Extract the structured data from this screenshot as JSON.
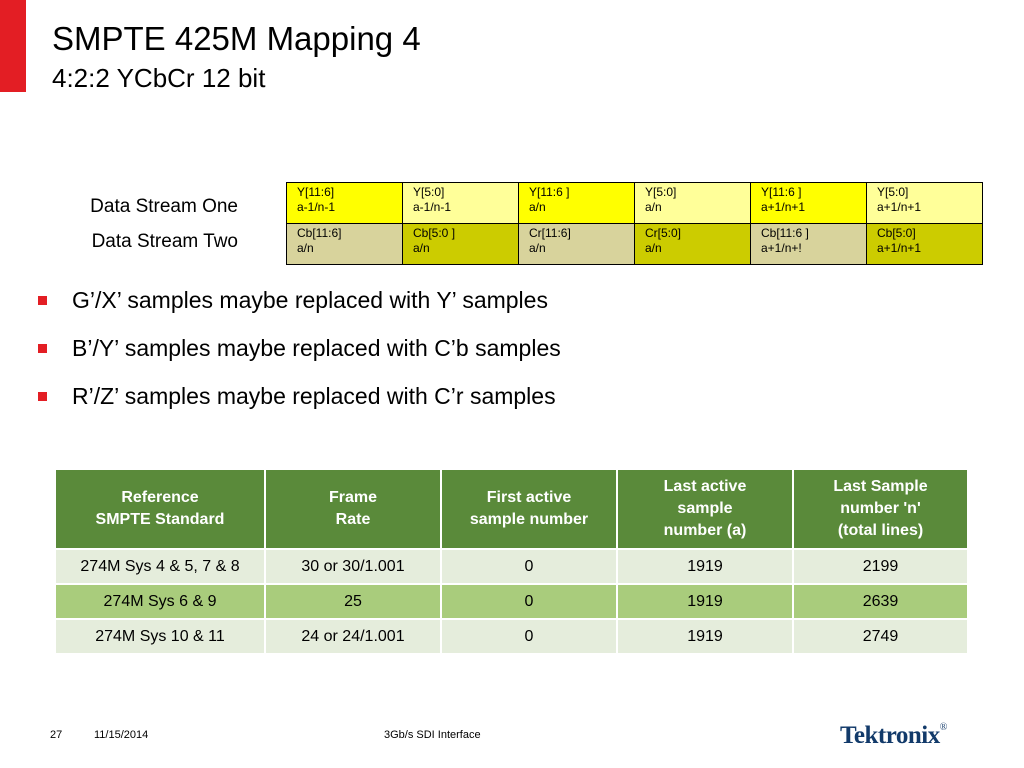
{
  "header": {
    "title": "SMPTE 425M Mapping 4",
    "subtitle": "4:2:2 YCbCr 12 bit"
  },
  "mapping": {
    "stream_one_label": "Data Stream One",
    "stream_two_label": "Data Stream Two",
    "stream_one": [
      {
        "line1": "Y[11:6]",
        "line2": "a-1/n-1",
        "color": "#ffff00"
      },
      {
        "line1": "Y[5:0]",
        "line2": "a-1/n-1",
        "color": "#ffff99"
      },
      {
        "line1": "Y[11:6 ]",
        "line2": "a/n",
        "color": "#ffff00"
      },
      {
        "line1": "Y[5:0]",
        "line2": "a/n",
        "color": "#ffff99"
      },
      {
        "line1": "Y[11:6 ]",
        "line2": "a+1/n+1",
        "color": "#ffff00"
      },
      {
        "line1": "Y[5:0]",
        "line2": "a+1/n+1",
        "color": "#ffff99"
      }
    ],
    "stream_two": [
      {
        "line1": "Cb[11:6]",
        "line2": "a/n",
        "color": "#d8d39c"
      },
      {
        "line1": "Cb[5:0 ]",
        "line2": "a/n",
        "color": "#cccc00"
      },
      {
        "line1": "Cr[11:6]",
        "line2": "a/n",
        "color": "#d8d39c"
      },
      {
        "line1": "Cr[5:0]",
        "line2": "a/n",
        "color": "#cccc00"
      },
      {
        "line1": "Cb[11:6 ]",
        "line2": "a+1/n+!",
        "color": "#d8d39c"
      },
      {
        "line1": "Cb[5:0]",
        "line2": "a+1/n+1",
        "color": "#cccc00"
      }
    ]
  },
  "bullets": [
    "G’/X’ samples maybe replaced with Y’ samples",
    "B’/Y’ samples maybe replaced with C’b samples",
    "R’/Z’ samples maybe replaced with C’r samples"
  ],
  "ref_table": {
    "headers": [
      {
        "line1": "Reference",
        "line2": "SMPTE Standard"
      },
      {
        "line1": "Frame",
        "line2": "Rate"
      },
      {
        "line1": "First active",
        "line2": "sample number"
      },
      {
        "line1": "Last active",
        "line2": "sample",
        "line3": "number  (a)"
      },
      {
        "line1": "Last Sample",
        "line2": "number 'n'",
        "line3": "(total lines)"
      }
    ],
    "rows": [
      [
        "274M Sys 4 & 5, 7 & 8",
        "30 or 30/1.001",
        "0",
        "1919",
        "2199"
      ],
      [
        "274M Sys 6 & 9",
        "25",
        "0",
        "1919",
        "2639"
      ],
      [
        "274M Sys 10 & 11",
        "24 or 24/1.001",
        "0",
        "1919",
        "2749"
      ]
    ]
  },
  "footer": {
    "page": "27",
    "date": "11/15/2014",
    "title": "3Gb/s SDI Interface",
    "logo": "Tektronix"
  },
  "colors": {
    "accent_red": "#e31e24",
    "table_header_green": "#5a8a3a",
    "row_light": "#e5eddc",
    "row_green": "#a9cc7c",
    "logo_blue": "#123a6a"
  }
}
